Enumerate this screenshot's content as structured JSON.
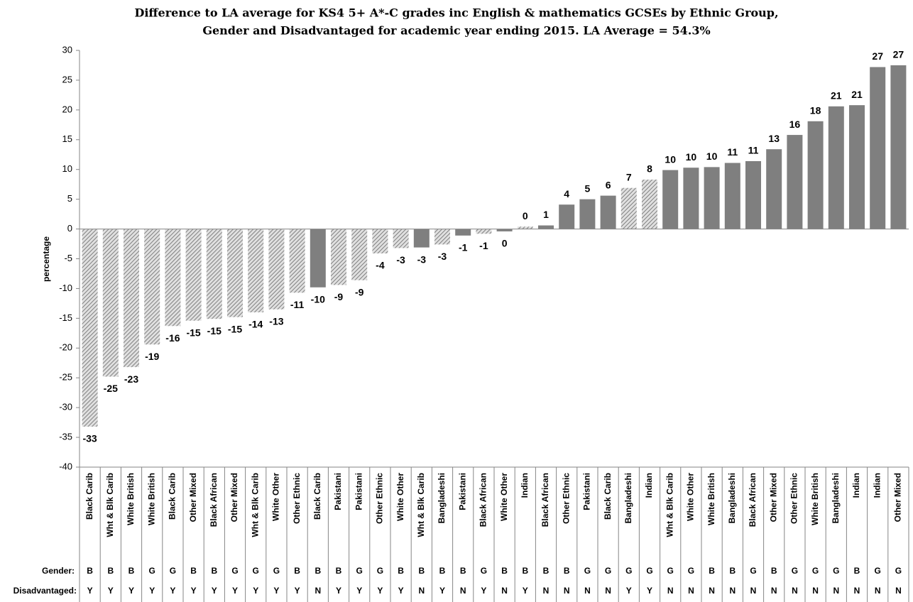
{
  "chart_data": {
    "type": "bar",
    "title": [
      "Difference to LA average for KS4 5+ A*-C grades inc English & mathematics GCSEs by Ethnic Group,",
      "Gender and Disadvantaged for academic year ending 2015. LA Average = 54.3%"
    ],
    "y_label": "percentage",
    "categories": [
      "Black Carib",
      "Wht & Blk Carib",
      "White British",
      "White British",
      "Black Carib",
      "Other Mixed",
      "Black African",
      "Other Mixed",
      "Wht & Blk Carib",
      "White Other",
      "Other Ethnic",
      "Black Carib",
      "Pakistani",
      "Pakistani",
      "Other Ethnic",
      "White Other",
      "Wht & Blk Carib",
      "Bangladeshi",
      "Pakistani",
      "Black African",
      "White Other",
      "Indian",
      "Black African",
      "Other Ethnic",
      "Pakistani",
      "Black Carib",
      "Bangladeshi",
      "Indian",
      "Wht & Blk Carib",
      "White Other",
      "White British",
      "Bangladeshi",
      "Black African",
      "Other Mixed",
      "Other Ethnic",
      "White British",
      "Bangladeshi",
      "Indian",
      "Indian",
      "Other Mixed"
    ],
    "values": [
      -33.2,
      -24.8,
      -23.2,
      -19.4,
      -16.3,
      -15.4,
      -15.1,
      -14.8,
      -14.0,
      -13.5,
      -10.7,
      -9.8,
      -9.4,
      -8.6,
      -4.1,
      -3.2,
      -3.1,
      -2.6,
      -1.1,
      -0.8,
      -0.4,
      0.4,
      0.6,
      4.1,
      5.0,
      5.6,
      6.9,
      8.3,
      9.9,
      10.3,
      10.4,
      11.1,
      11.4,
      13.4,
      15.8,
      18.1,
      20.6,
      20.8,
      27.2,
      27.5
    ],
    "value_labels": [
      "-33",
      "-25",
      "-23",
      "-19",
      "-16",
      "-15",
      "-15",
      "-15",
      "-14",
      "-13",
      "-11",
      "-10",
      "-9",
      "-9",
      "-4",
      "-3",
      "-3",
      "-3",
      "-1",
      "-1",
      "0",
      "0",
      "1",
      "4",
      "5",
      "6",
      "7",
      "8",
      "10",
      "10",
      "10",
      "11",
      "11",
      "13",
      "16",
      "18",
      "21",
      "21",
      "27",
      "27"
    ],
    "row_labels": [
      "Gender:",
      "Disadvantaged:"
    ],
    "gender": [
      "B",
      "B",
      "B",
      "G",
      "G",
      "B",
      "B",
      "G",
      "G",
      "G",
      "B",
      "B",
      "B",
      "G",
      "G",
      "B",
      "B",
      "B",
      "B",
      "G",
      "B",
      "B",
      "B",
      "B",
      "G",
      "G",
      "G",
      "G",
      "G",
      "G",
      "B",
      "B",
      "G",
      "B",
      "G",
      "G",
      "G",
      "B",
      "G",
      "G"
    ],
    "disadvantaged": [
      "Y",
      "Y",
      "Y",
      "Y",
      "Y",
      "Y",
      "Y",
      "Y",
      "Y",
      "Y",
      "Y",
      "N",
      "Y",
      "Y",
      "Y",
      "Y",
      "N",
      "Y",
      "N",
      "Y",
      "N",
      "Y",
      "N",
      "N",
      "N",
      "N",
      "Y",
      "Y",
      "N",
      "N",
      "N",
      "N",
      "N",
      "N",
      "N",
      "N",
      "N",
      "N",
      "N",
      "N"
    ],
    "color": "#7f7f7f",
    "ylim": [
      -40,
      30
    ],
    "yticks": [
      -40,
      -35,
      -30,
      -25,
      -20,
      -15,
      -10,
      -5,
      0,
      5,
      10,
      15,
      20,
      25,
      30
    ]
  }
}
